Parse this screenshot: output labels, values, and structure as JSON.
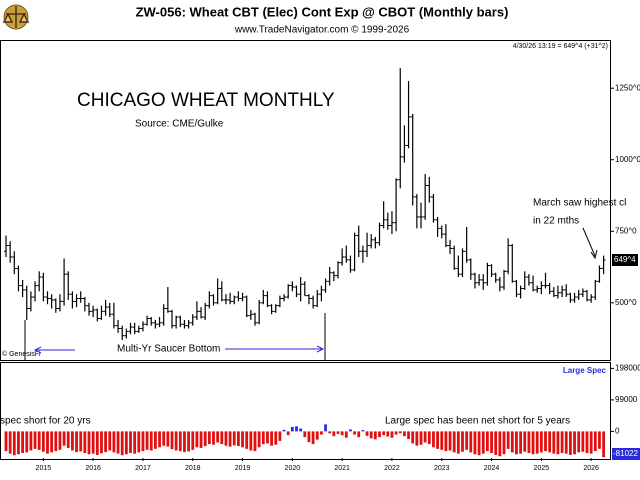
{
  "chart_data": [
    {
      "type": "ohlc",
      "title": "ZW-056:  Wheat CBT (Elec) Cont Exp @ CBOT  (Monthly bars)",
      "subtitle": "www.TradeNavigator.com © 1999-2026",
      "timestamp": "4/30/26 13:19 = 649^4 (+31^2)",
      "heading": "CHICAGO WHEAT MONTHLY",
      "source": "Source:  CME/Gulke",
      "notes": [
        "March saw highest cl",
        "in 22 mths",
        "Multi-Yr Saucer Bottom",
        "© GenesisFi"
      ],
      "color": "#000000",
      "categories": [
        null,
        null,
        null,
        null,
        null,
        null,
        null,
        null,
        null,
        "2015",
        null,
        null,
        null,
        null,
        null,
        null,
        null,
        null,
        null,
        null,
        null,
        "2016",
        null,
        null,
        null,
        null,
        null,
        null,
        null,
        null,
        null,
        null,
        null,
        "2017",
        null,
        null,
        null,
        null,
        null,
        null,
        null,
        null,
        null,
        null,
        null,
        "2018",
        null,
        null,
        null,
        null,
        null,
        null,
        null,
        null,
        null,
        null,
        null,
        "2019",
        null,
        null,
        null,
        null,
        null,
        null,
        null,
        null,
        null,
        null,
        null,
        "2020",
        null,
        null,
        null,
        null,
        null,
        null,
        null,
        null,
        null,
        null,
        null,
        "2021",
        null,
        null,
        null,
        null,
        null,
        null,
        null,
        null,
        null,
        null,
        null,
        "2022",
        null,
        null,
        null,
        null,
        null,
        null,
        null,
        null,
        null,
        null,
        null,
        "2023",
        null,
        null,
        null,
        null,
        null,
        null,
        null,
        null,
        null,
        null,
        null,
        "2024",
        null,
        null,
        null,
        null,
        null,
        null,
        null,
        null,
        null,
        null,
        null,
        "2025",
        null,
        null,
        null,
        null,
        null,
        null,
        null,
        null,
        null,
        null,
        null,
        "2026",
        null,
        null,
        null
      ],
      "open": [
        680,
        700,
        660,
        620,
        560,
        545,
        480,
        520,
        560,
        590,
        520,
        515,
        510,
        480,
        505,
        600,
        530,
        505,
        515,
        515,
        490,
        470,
        475,
        445,
        470,
        485,
        460,
        420,
        410,
        385,
        400,
        415,
        400,
        410,
        425,
        445,
        430,
        425,
        430,
        480,
        470,
        420,
        450,
        425,
        420,
        430,
        450,
        470,
        450,
        490,
        525,
        500,
        550,
        510,
        510,
        505,
        520,
        515,
        520,
        455,
        460,
        430,
        500,
        525,
        490,
        470,
        490,
        515,
        520,
        560,
        555,
        530,
        565,
        525,
        515,
        490,
        530,
        545,
        575,
        605,
        595,
        640,
        660,
        650,
        615,
        735,
        680,
        680,
        700,
        720,
        710,
        770,
        790,
        770,
        780,
        930,
        1010,
        1050,
        1150,
        870,
        800,
        800,
        910,
        870,
        790,
        760,
        740,
        700,
        690,
        620,
        600,
        680,
        650,
        600,
        570,
        580,
        570,
        630,
        600,
        580,
        555,
        610,
        700,
        575,
        530,
        550,
        590,
        570,
        545,
        550,
        560,
        560,
        540,
        525,
        535,
        545,
        530,
        510,
        520,
        530,
        540,
        510,
        520,
        575,
        620
      ],
      "high": [
        735,
        715,
        680,
        630,
        580,
        560,
        540,
        575,
        610,
        605,
        540,
        530,
        515,
        530,
        655,
        610,
        540,
        530,
        540,
        520,
        500,
        490,
        480,
        490,
        510,
        500,
        500,
        440,
        420,
        410,
        430,
        430,
        420,
        435,
        455,
        450,
        440,
        450,
        495,
        555,
        475,
        455,
        455,
        440,
        440,
        460,
        505,
        485,
        500,
        540,
        530,
        585,
        575,
        530,
        535,
        525,
        540,
        535,
        525,
        475,
        465,
        510,
        545,
        540,
        495,
        495,
        525,
        530,
        565,
        575,
        560,
        590,
        575,
        530,
        525,
        545,
        560,
        585,
        625,
        610,
        645,
        690,
        700,
        665,
        745,
        770,
        700,
        745,
        740,
        730,
        780,
        855,
        815,
        820,
        935,
        1320,
        1120,
        1275,
        1160,
        880,
        850,
        950,
        940,
        880,
        800,
        770,
        775,
        720,
        700,
        665,
        690,
        765,
        655,
        605,
        600,
        600,
        640,
        635,
        605,
        590,
        615,
        725,
        705,
        580,
        560,
        610,
        600,
        595,
        560,
        575,
        605,
        570,
        555,
        560,
        560,
        565,
        535,
        535,
        545,
        550,
        545,
        530,
        580,
        630,
        665
      ],
      "low": [
        660,
        640,
        600,
        540,
        520,
        440,
        470,
        505,
        540,
        505,
        495,
        480,
        465,
        470,
        490,
        510,
        480,
        485,
        500,
        470,
        455,
        450,
        435,
        440,
        455,
        450,
        410,
        395,
        370,
        375,
        390,
        390,
        395,
        400,
        420,
        420,
        410,
        415,
        420,
        465,
        410,
        410,
        415,
        410,
        410,
        420,
        440,
        445,
        440,
        480,
        490,
        495,
        505,
        495,
        495,
        495,
        505,
        505,
        450,
        440,
        420,
        425,
        495,
        485,
        460,
        465,
        485,
        505,
        515,
        540,
        520,
        505,
        525,
        495,
        480,
        485,
        505,
        535,
        560,
        575,
        585,
        630,
        640,
        605,
        610,
        660,
        640,
        660,
        690,
        690,
        700,
        760,
        755,
        740,
        750,
        900,
        990,
        1040,
        840,
        760,
        760,
        790,
        850,
        780,
        730,
        725,
        695,
        670,
        615,
        590,
        590,
        640,
        580,
        550,
        560,
        545,
        560,
        590,
        570,
        540,
        545,
        600,
        570,
        520,
        515,
        545,
        560,
        540,
        535,
        530,
        550,
        530,
        520,
        515,
        520,
        520,
        500,
        500,
        510,
        520,
        505,
        500,
        510,
        570,
        600
      ],
      "close": [
        700,
        660,
        620,
        560,
        545,
        480,
        520,
        560,
        590,
        520,
        515,
        510,
        480,
        505,
        600,
        530,
        505,
        515,
        515,
        490,
        470,
        475,
        445,
        470,
        485,
        460,
        420,
        410,
        385,
        400,
        415,
        400,
        410,
        425,
        445,
        430,
        425,
        430,
        480,
        470,
        420,
        450,
        425,
        420,
        430,
        450,
        470,
        450,
        490,
        525,
        500,
        550,
        510,
        510,
        505,
        520,
        515,
        520,
        455,
        460,
        430,
        500,
        525,
        490,
        470,
        490,
        515,
        520,
        560,
        555,
        530,
        565,
        525,
        515,
        490,
        530,
        545,
        575,
        605,
        595,
        640,
        660,
        650,
        615,
        735,
        680,
        680,
        700,
        720,
        710,
        770,
        790,
        770,
        780,
        930,
        1010,
        1050,
        1150,
        870,
        800,
        800,
        910,
        870,
        790,
        760,
        740,
        700,
        690,
        620,
        600,
        680,
        650,
        600,
        570,
        580,
        570,
        630,
        600,
        580,
        555,
        610,
        700,
        575,
        530,
        550,
        590,
        570,
        545,
        550,
        560,
        560,
        540,
        525,
        535,
        545,
        530,
        510,
        520,
        530,
        540,
        510,
        520,
        575,
        620,
        649.5
      ],
      "last_value": {
        "value": 649.5,
        "label": "649^4"
      },
      "ylim": [
        300,
        1415
      ],
      "yticks": [
        {
          "value": 500,
          "label": "500^0"
        },
        {
          "value": 750,
          "label": "750^0"
        },
        {
          "value": 1000,
          "label": "1000^0"
        },
        {
          "value": 1250,
          "label": "1250^0"
        }
      ]
    },
    {
      "type": "bar",
      "notes": [
        "spec short for 20 yrs",
        "Large spec has been net short for 5 years"
      ],
      "series": [
        {
          "name": "Large Spec",
          "color": "#2a2ae0",
          "negative_color": "#e01010",
          "values": [
            -62000,
            -70000,
            -75000,
            -72000,
            -68000,
            -66000,
            -60000,
            -55000,
            -58000,
            -64000,
            -70000,
            -66000,
            -62000,
            -58000,
            -45000,
            -52000,
            -60000,
            -65000,
            -63000,
            -68000,
            -72000,
            -70000,
            -74000,
            -69000,
            -65000,
            -60000,
            -66000,
            -70000,
            -75000,
            -72000,
            -68000,
            -70000,
            -66000,
            -62000,
            -58000,
            -60000,
            -55000,
            -50000,
            -45000,
            -48000,
            -56000,
            -60000,
            -62000,
            -65000,
            -63000,
            -58000,
            -50000,
            -52000,
            -46000,
            -40000,
            -42000,
            -35000,
            -40000,
            -45000,
            -48000,
            -44000,
            -46000,
            -50000,
            -55000,
            -60000,
            -62000,
            -50000,
            -40000,
            -38000,
            -45000,
            -42000,
            -30000,
            5000,
            -12000,
            14000,
            16000,
            9000,
            -18000,
            -34000,
            -40000,
            -26000,
            -10000,
            22000,
            -6000,
            -15000,
            -8000,
            -12000,
            -20000,
            6000,
            -10000,
            -18000,
            4000,
            -14000,
            -22000,
            -25000,
            -18000,
            -12000,
            -16000,
            -20000,
            -10000,
            -6000,
            -15000,
            -24000,
            -38000,
            -45000,
            -42000,
            -35000,
            -40000,
            -50000,
            -55000,
            -58000,
            -62000,
            -60000,
            -66000,
            -70000,
            -64000,
            -58000,
            -66000,
            -72000,
            -75000,
            -70000,
            -62000,
            -68000,
            -74000,
            -78000,
            -72000,
            -55000,
            -66000,
            -72000,
            -70000,
            -64000,
            -68000,
            -72000,
            -70000,
            -66000,
            -62000,
            -66000,
            -70000,
            -72000,
            -68000,
            -70000,
            -74000,
            -72000,
            -66000,
            -64000,
            -68000,
            -70000,
            -62000,
            -55000,
            -81022
          ]
        }
      ],
      "ylim": [
        -90000,
        215000
      ],
      "yticks": [
        0,
        99000,
        198000
      ]
    }
  ]
}
